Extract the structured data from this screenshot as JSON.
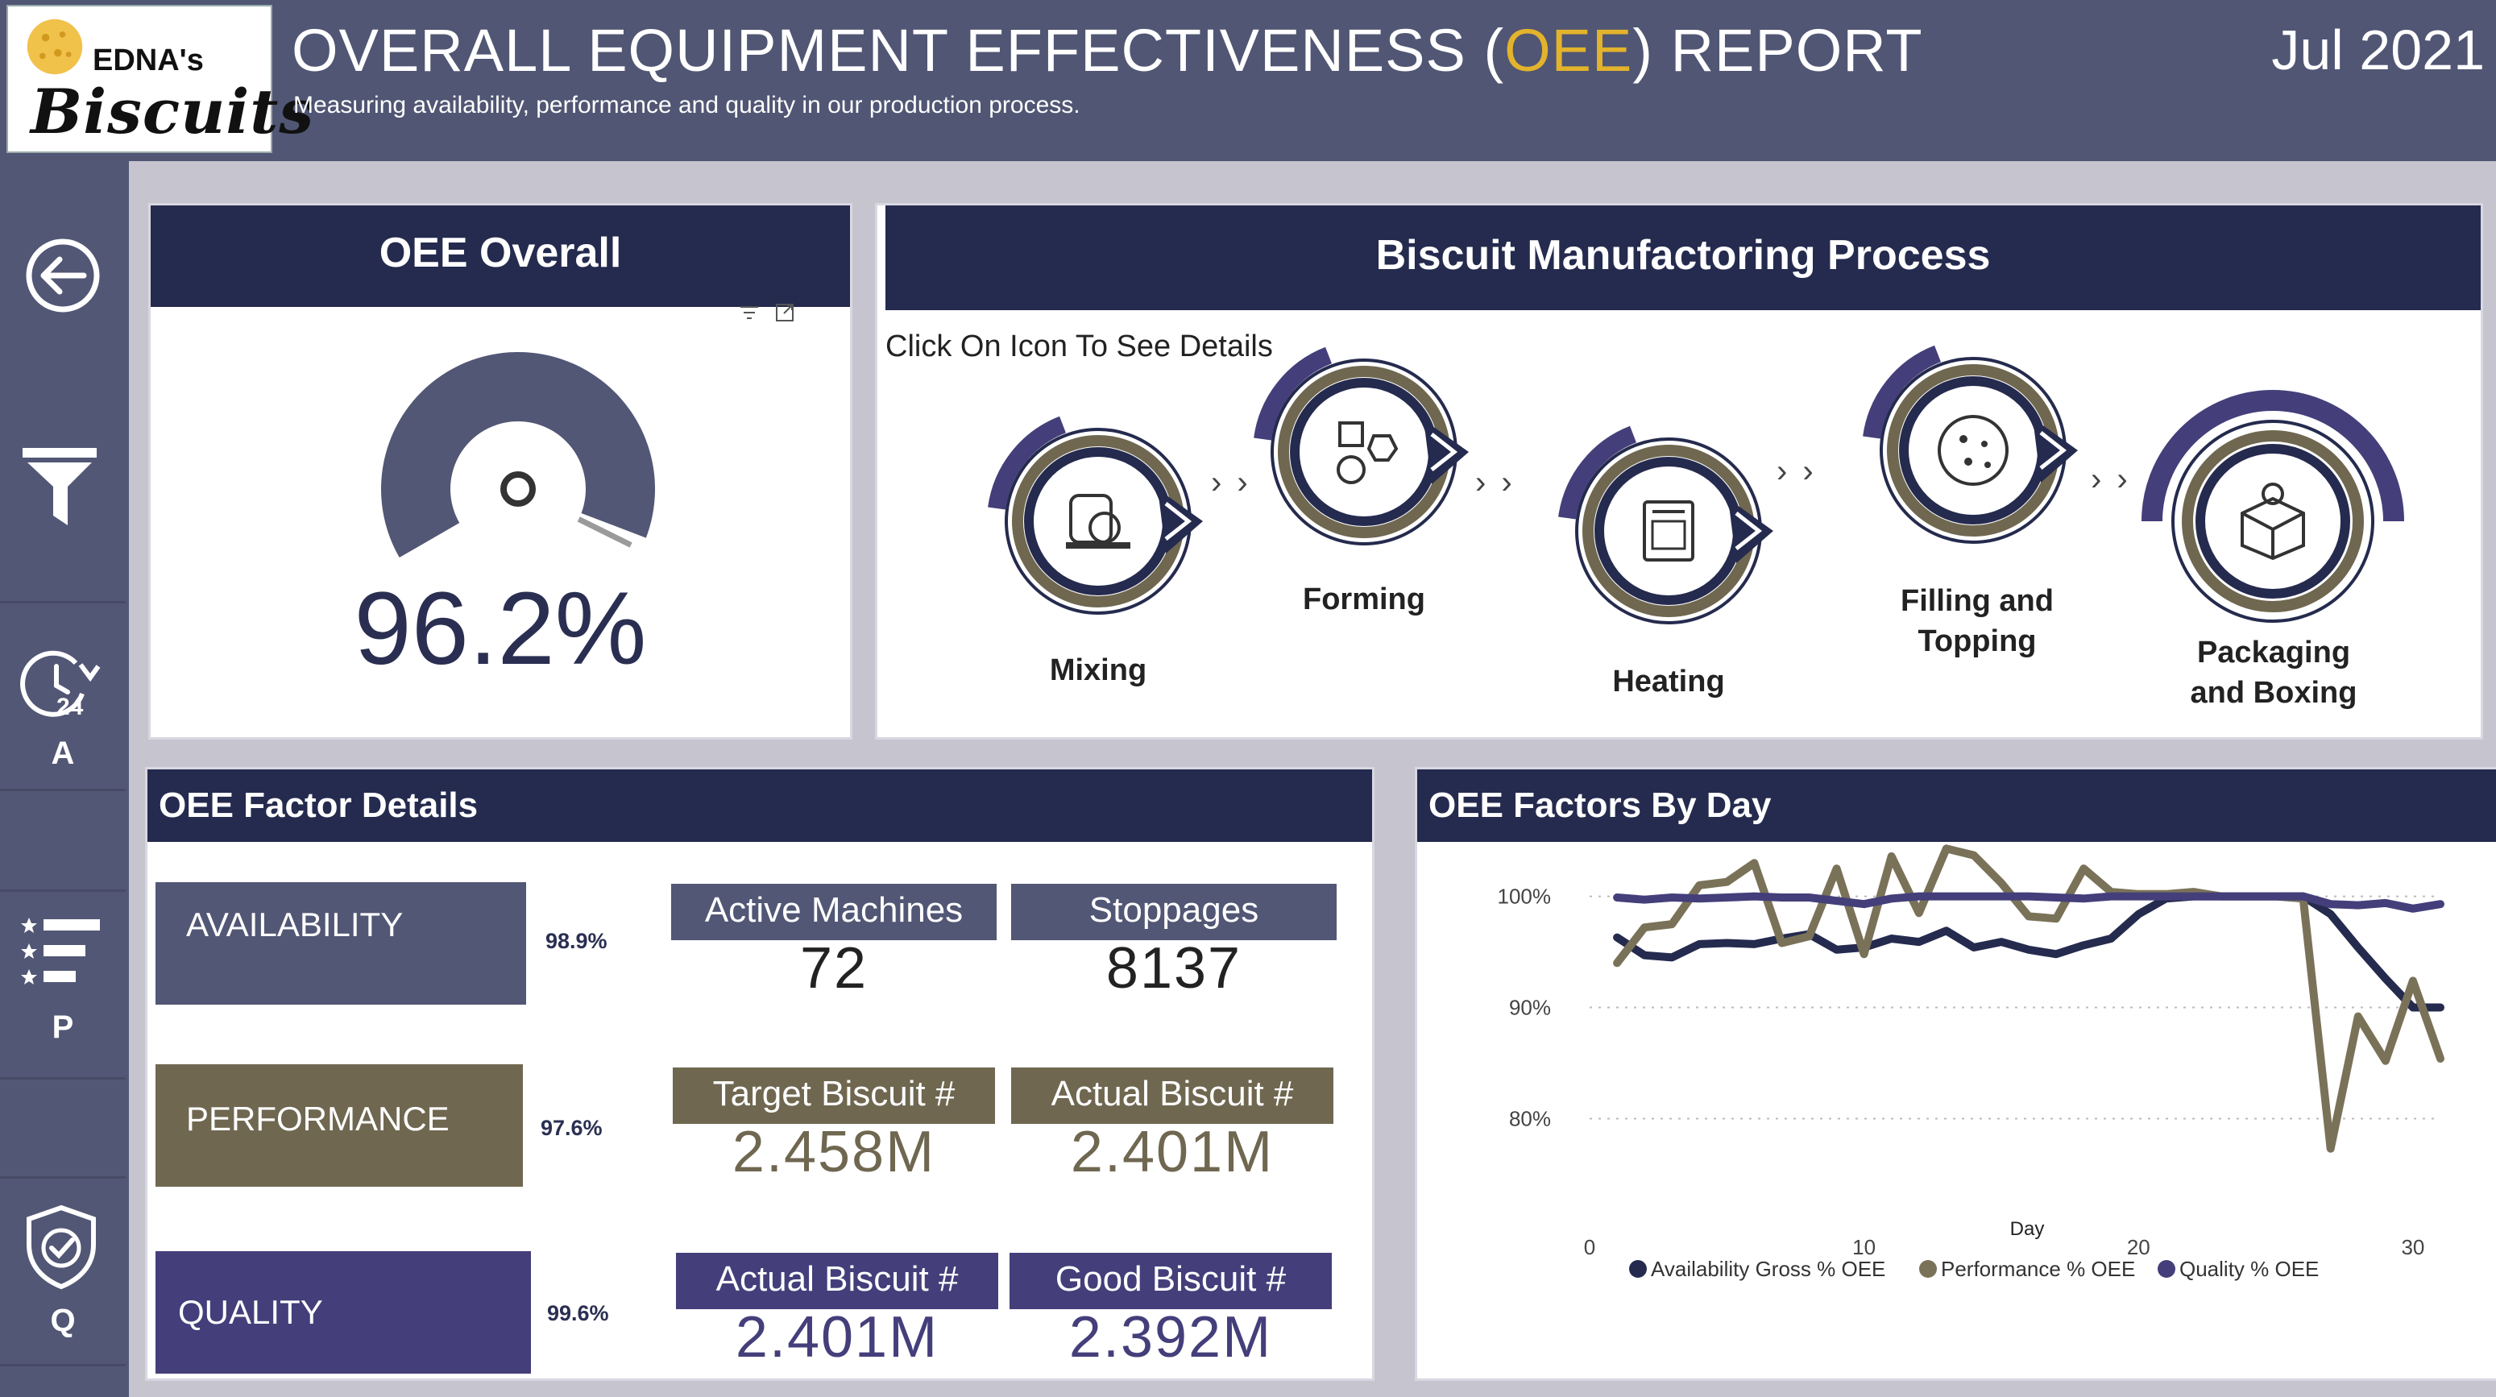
{
  "header": {
    "brand_small": "EDNA's",
    "brand_big": "Biscuits",
    "title_before": "OVERALL EQUIPMENT EFFECTIVENESS (",
    "title_highlight": "OEE",
    "title_after": ") REPORT",
    "subtitle": "Measuring availability, performance and quality in our production process.",
    "date": "Jul 2021",
    "accent": "#e3b32c"
  },
  "sidebar": {
    "back_icon": "back-arrow-icon",
    "filter_icon": "filter-icon",
    "availability_label": "A",
    "availability_badge": "24",
    "performance_label": "P",
    "quality_label": "Q"
  },
  "oee_overall": {
    "title": "OEE Overall",
    "value": "96.2%",
    "fraction": 0.962
  },
  "process": {
    "title": "Biscuit Manufactoring Process",
    "hint": "Click On Icon To See Details",
    "steps": [
      {
        "line1": "Mixing",
        "line2": ""
      },
      {
        "line1": "Forming",
        "line2": ""
      },
      {
        "line1": "Heating",
        "line2": ""
      },
      {
        "line1": "Filling and",
        "line2": "Topping"
      },
      {
        "line1": "Packaging",
        "line2": "and Boxing"
      }
    ],
    "arrow_glyph": "› ›"
  },
  "factors": {
    "title": "OEE Factor Details",
    "rows": [
      {
        "name": "AVAILABILITY",
        "pct": "98.9%",
        "color": "#525775",
        "k1_label": "Active Machines",
        "k1_value": "72",
        "k2_label": "Stoppages",
        "k2_value": "8137"
      },
      {
        "name": "PERFORMANCE",
        "pct": "97.6%",
        "color": "#6f6750",
        "k1_label": "Target Biscuit #",
        "k1_value": "2.458M",
        "k2_label": "Actual Biscuit #",
        "k2_value": "2.401M"
      },
      {
        "name": "QUALITY",
        "pct": "99.6%",
        "color": "#443f7a",
        "k1_label": "Actual Biscuit #",
        "k1_value": "2.401M",
        "k2_label": "Good Biscuit #",
        "k2_value": "2.392M"
      }
    ]
  },
  "chart_data": {
    "type": "line",
    "title": "OEE Factors By Day",
    "xlabel": "Day",
    "ylabel": "",
    "xlim": [
      0,
      31
    ],
    "ylim": [
      73,
      102
    ],
    "xticks": [
      0,
      10,
      20,
      30
    ],
    "xtick_labels": [
      "0",
      "10",
      "20",
      "30"
    ],
    "yticks": [
      80,
      90,
      100
    ],
    "ytick_labels": [
      "80%",
      "90%",
      "100%"
    ],
    "legend_position": "bottom",
    "series": [
      {
        "name": "Availability Gross % OEE",
        "color": "#252b4e",
        "x": [
          1,
          2,
          3,
          4,
          5,
          6,
          7,
          8,
          9,
          10,
          11,
          12,
          13,
          14,
          15,
          16,
          17,
          18,
          19,
          20,
          21,
          22,
          23,
          24,
          25,
          26,
          27,
          28,
          29,
          30,
          31
        ],
        "y": [
          96.3,
          94.7,
          94.5,
          95.7,
          95.8,
          95.7,
          96.2,
          96.6,
          95.2,
          95.4,
          96.2,
          95.9,
          96.9,
          95.4,
          95.9,
          95.2,
          94.8,
          95.6,
          96.2,
          98.4,
          99.8,
          100,
          100,
          100,
          100,
          100,
          98.4,
          95.4,
          92.6,
          90,
          90
        ]
      },
      {
        "name": "Performance % OEE",
        "color": "#7a7258",
        "x": [
          1,
          2,
          3,
          4,
          5,
          6,
          7,
          8,
          9,
          10,
          11,
          12,
          13,
          14,
          15,
          16,
          17,
          18,
          19,
          20,
          21,
          22,
          23,
          24,
          25,
          26,
          27,
          28,
          29,
          30,
          31
        ],
        "y": [
          94,
          97.2,
          97.5,
          101,
          101.3,
          103,
          95.8,
          96.4,
          102.5,
          94.8,
          103.6,
          98.5,
          104.3,
          103.7,
          101.2,
          98.2,
          98,
          102.5,
          100.4,
          100.2,
          100.2,
          100.4,
          100,
          100,
          100,
          99.8,
          77.3,
          89.2,
          85.2,
          92.4,
          85.4
        ]
      },
      {
        "name": "Quality % OEE",
        "color": "#443f7a",
        "x": [
          1,
          2,
          3,
          4,
          5,
          6,
          7,
          8,
          9,
          10,
          11,
          12,
          13,
          14,
          15,
          16,
          17,
          18,
          19,
          20,
          21,
          22,
          23,
          24,
          25,
          26,
          27,
          28,
          29,
          30,
          31
        ],
        "y": [
          99.9,
          99.7,
          99.9,
          99.8,
          99.9,
          100,
          99.9,
          99.9,
          99.6,
          99.3,
          99.8,
          100,
          100,
          100,
          100,
          100,
          99.9,
          99.8,
          100,
          100,
          100,
          100,
          100,
          100,
          100,
          100,
          99.3,
          99.2,
          99.4,
          98.9,
          99.3
        ]
      }
    ]
  }
}
